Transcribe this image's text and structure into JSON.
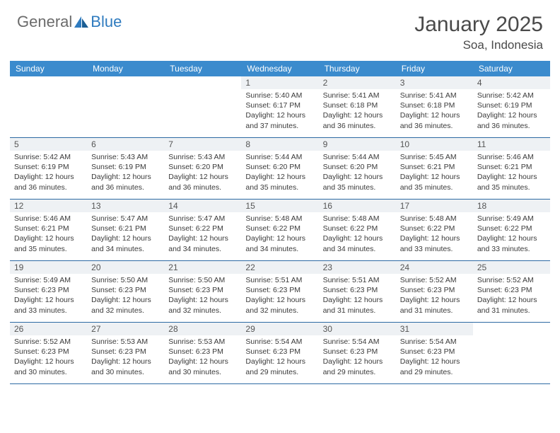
{
  "logo": {
    "general": "General",
    "blue": "Blue"
  },
  "title": "January 2025",
  "location": "Soa, Indonesia",
  "colors": {
    "header_bar": "#3b8bcd",
    "header_text": "#ffffff",
    "daynum_bg": "#eef1f4",
    "week_divider": "#2d6aa3",
    "body_text": "#3a3a3a",
    "logo_gray": "#6b6b6b",
    "logo_blue": "#2f7bbf"
  },
  "typography": {
    "title_fontsize": 30,
    "location_fontsize": 17,
    "dow_fontsize": 12,
    "daynum_fontsize": 12,
    "body_fontsize": 10.5
  },
  "days_of_week": [
    "Sunday",
    "Monday",
    "Tuesday",
    "Wednesday",
    "Thursday",
    "Friday",
    "Saturday"
  ],
  "weeks": [
    [
      {
        "n": "",
        "sr": "",
        "ss": "",
        "dl": ""
      },
      {
        "n": "",
        "sr": "",
        "ss": "",
        "dl": ""
      },
      {
        "n": "",
        "sr": "",
        "ss": "",
        "dl": ""
      },
      {
        "n": "1",
        "sr": "5:40 AM",
        "ss": "6:17 PM",
        "dl": "12 hours and 37 minutes."
      },
      {
        "n": "2",
        "sr": "5:41 AM",
        "ss": "6:18 PM",
        "dl": "12 hours and 36 minutes."
      },
      {
        "n": "3",
        "sr": "5:41 AM",
        "ss": "6:18 PM",
        "dl": "12 hours and 36 minutes."
      },
      {
        "n": "4",
        "sr": "5:42 AM",
        "ss": "6:19 PM",
        "dl": "12 hours and 36 minutes."
      }
    ],
    [
      {
        "n": "5",
        "sr": "5:42 AM",
        "ss": "6:19 PM",
        "dl": "12 hours and 36 minutes."
      },
      {
        "n": "6",
        "sr": "5:43 AM",
        "ss": "6:19 PM",
        "dl": "12 hours and 36 minutes."
      },
      {
        "n": "7",
        "sr": "5:43 AM",
        "ss": "6:20 PM",
        "dl": "12 hours and 36 minutes."
      },
      {
        "n": "8",
        "sr": "5:44 AM",
        "ss": "6:20 PM",
        "dl": "12 hours and 35 minutes."
      },
      {
        "n": "9",
        "sr": "5:44 AM",
        "ss": "6:20 PM",
        "dl": "12 hours and 35 minutes."
      },
      {
        "n": "10",
        "sr": "5:45 AM",
        "ss": "6:21 PM",
        "dl": "12 hours and 35 minutes."
      },
      {
        "n": "11",
        "sr": "5:46 AM",
        "ss": "6:21 PM",
        "dl": "12 hours and 35 minutes."
      }
    ],
    [
      {
        "n": "12",
        "sr": "5:46 AM",
        "ss": "6:21 PM",
        "dl": "12 hours and 35 minutes."
      },
      {
        "n": "13",
        "sr": "5:47 AM",
        "ss": "6:21 PM",
        "dl": "12 hours and 34 minutes."
      },
      {
        "n": "14",
        "sr": "5:47 AM",
        "ss": "6:22 PM",
        "dl": "12 hours and 34 minutes."
      },
      {
        "n": "15",
        "sr": "5:48 AM",
        "ss": "6:22 PM",
        "dl": "12 hours and 34 minutes."
      },
      {
        "n": "16",
        "sr": "5:48 AM",
        "ss": "6:22 PM",
        "dl": "12 hours and 34 minutes."
      },
      {
        "n": "17",
        "sr": "5:48 AM",
        "ss": "6:22 PM",
        "dl": "12 hours and 33 minutes."
      },
      {
        "n": "18",
        "sr": "5:49 AM",
        "ss": "6:22 PM",
        "dl": "12 hours and 33 minutes."
      }
    ],
    [
      {
        "n": "19",
        "sr": "5:49 AM",
        "ss": "6:23 PM",
        "dl": "12 hours and 33 minutes."
      },
      {
        "n": "20",
        "sr": "5:50 AM",
        "ss": "6:23 PM",
        "dl": "12 hours and 32 minutes."
      },
      {
        "n": "21",
        "sr": "5:50 AM",
        "ss": "6:23 PM",
        "dl": "12 hours and 32 minutes."
      },
      {
        "n": "22",
        "sr": "5:51 AM",
        "ss": "6:23 PM",
        "dl": "12 hours and 32 minutes."
      },
      {
        "n": "23",
        "sr": "5:51 AM",
        "ss": "6:23 PM",
        "dl": "12 hours and 31 minutes."
      },
      {
        "n": "24",
        "sr": "5:52 AM",
        "ss": "6:23 PM",
        "dl": "12 hours and 31 minutes."
      },
      {
        "n": "25",
        "sr": "5:52 AM",
        "ss": "6:23 PM",
        "dl": "12 hours and 31 minutes."
      }
    ],
    [
      {
        "n": "26",
        "sr": "5:52 AM",
        "ss": "6:23 PM",
        "dl": "12 hours and 30 minutes."
      },
      {
        "n": "27",
        "sr": "5:53 AM",
        "ss": "6:23 PM",
        "dl": "12 hours and 30 minutes."
      },
      {
        "n": "28",
        "sr": "5:53 AM",
        "ss": "6:23 PM",
        "dl": "12 hours and 30 minutes."
      },
      {
        "n": "29",
        "sr": "5:54 AM",
        "ss": "6:23 PM",
        "dl": "12 hours and 29 minutes."
      },
      {
        "n": "30",
        "sr": "5:54 AM",
        "ss": "6:23 PM",
        "dl": "12 hours and 29 minutes."
      },
      {
        "n": "31",
        "sr": "5:54 AM",
        "ss": "6:23 PM",
        "dl": "12 hours and 29 minutes."
      },
      {
        "n": "",
        "sr": "",
        "ss": "",
        "dl": ""
      }
    ]
  ],
  "labels": {
    "sunrise": "Sunrise:",
    "sunset": "Sunset:",
    "daylight": "Daylight:"
  }
}
